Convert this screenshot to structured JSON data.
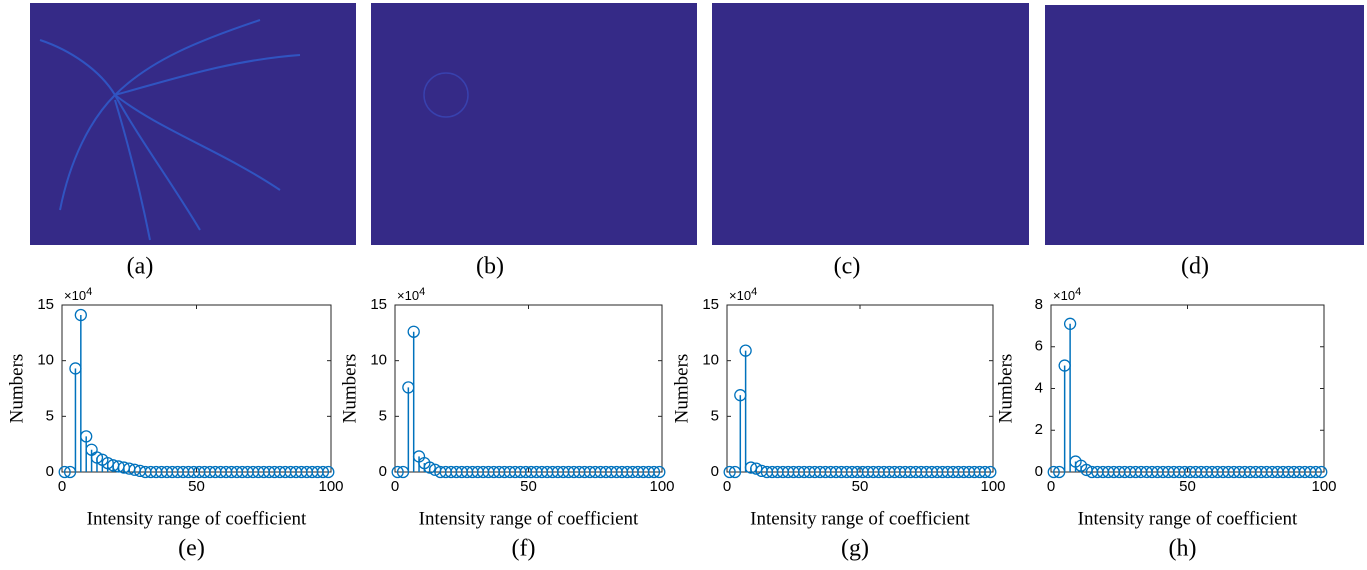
{
  "images": [
    {
      "label": "(a)"
    },
    {
      "label": "(b)"
    },
    {
      "label": "(c)"
    },
    {
      "label": "(d)"
    }
  ],
  "chart_data": [
    {
      "type": "stem",
      "label": "(e)",
      "xlabel": "Intensity range of coefficient",
      "ylabel": "Numbers",
      "multiplier": {
        "base": "×10",
        "exponent": "4"
      },
      "color": "#0072bd",
      "xlim": [
        0,
        100
      ],
      "xticks": [
        0,
        50,
        100
      ],
      "ylim": [
        0,
        15
      ],
      "yticks": [
        0,
        5,
        10,
        15
      ],
      "x": [
        1,
        3,
        5,
        7,
        9,
        11,
        13,
        15,
        17,
        19,
        21,
        23,
        25,
        27,
        29,
        31,
        33,
        35,
        37,
        39,
        41,
        43,
        45,
        47,
        49,
        51,
        53,
        55,
        57,
        59,
        61,
        63,
        65,
        67,
        69,
        71,
        73,
        75,
        77,
        79,
        81,
        83,
        85,
        87,
        89,
        91,
        93,
        95,
        97,
        99
      ],
      "values": [
        0,
        0,
        9.3,
        14.1,
        3.2,
        2.0,
        1.3,
        1.1,
        0.8,
        0.6,
        0.5,
        0.4,
        0.3,
        0.2,
        0.1,
        0,
        0,
        0,
        0,
        0,
        0,
        0,
        0,
        0,
        0,
        0,
        0,
        0,
        0,
        0,
        0,
        0,
        0,
        0,
        0,
        0,
        0,
        0,
        0,
        0,
        0,
        0,
        0,
        0,
        0,
        0,
        0,
        0,
        0,
        0
      ]
    },
    {
      "type": "stem",
      "label": "(f)",
      "xlabel": "Intensity range of coefficient",
      "ylabel": "Numbers",
      "multiplier": {
        "base": "×10",
        "exponent": "4"
      },
      "color": "#0072bd",
      "xlim": [
        0,
        100
      ],
      "xticks": [
        0,
        50,
        100
      ],
      "ylim": [
        0,
        15
      ],
      "yticks": [
        0,
        5,
        10,
        15
      ],
      "x": [
        1,
        3,
        5,
        7,
        9,
        11,
        13,
        15,
        17,
        19,
        21,
        23,
        25,
        27,
        29,
        31,
        33,
        35,
        37,
        39,
        41,
        43,
        45,
        47,
        49,
        51,
        53,
        55,
        57,
        59,
        61,
        63,
        65,
        67,
        69,
        71,
        73,
        75,
        77,
        79,
        81,
        83,
        85,
        87,
        89,
        91,
        93,
        95,
        97,
        99
      ],
      "values": [
        0,
        0,
        7.6,
        12.6,
        1.4,
        0.8,
        0.4,
        0.2,
        0,
        0,
        0,
        0,
        0,
        0,
        0,
        0,
        0,
        0,
        0,
        0,
        0,
        0,
        0,
        0,
        0,
        0,
        0,
        0,
        0,
        0,
        0,
        0,
        0,
        0,
        0,
        0,
        0,
        0,
        0,
        0,
        0,
        0,
        0,
        0,
        0,
        0,
        0,
        0,
        0,
        0
      ]
    },
    {
      "type": "stem",
      "label": "(g)",
      "xlabel": "Intensity range of coefficient",
      "ylabel": "Numbers",
      "multiplier": {
        "base": "×10",
        "exponent": "4"
      },
      "color": "#0072bd",
      "xlim": [
        0,
        100
      ],
      "xticks": [
        0,
        50,
        100
      ],
      "ylim": [
        0,
        15
      ],
      "yticks": [
        0,
        5,
        10,
        15
      ],
      "x": [
        1,
        3,
        5,
        7,
        9,
        11,
        13,
        15,
        17,
        19,
        21,
        23,
        25,
        27,
        29,
        31,
        33,
        35,
        37,
        39,
        41,
        43,
        45,
        47,
        49,
        51,
        53,
        55,
        57,
        59,
        61,
        63,
        65,
        67,
        69,
        71,
        73,
        75,
        77,
        79,
        81,
        83,
        85,
        87,
        89,
        91,
        93,
        95,
        97,
        99
      ],
      "values": [
        0,
        0,
        6.9,
        10.9,
        0.4,
        0.3,
        0.1,
        0,
        0,
        0,
        0,
        0,
        0,
        0,
        0,
        0,
        0,
        0,
        0,
        0,
        0,
        0,
        0,
        0,
        0,
        0,
        0,
        0,
        0,
        0,
        0,
        0,
        0,
        0,
        0,
        0,
        0,
        0,
        0,
        0,
        0,
        0,
        0,
        0,
        0,
        0,
        0,
        0,
        0,
        0
      ]
    },
    {
      "type": "stem",
      "label": "(h)",
      "xlabel": "Intensity range of coefficient",
      "ylabel": "Numbers",
      "multiplier": {
        "base": "×10",
        "exponent": "4"
      },
      "color": "#0072bd",
      "xlim": [
        0,
        100
      ],
      "xticks": [
        0,
        50,
        100
      ],
      "ylim": [
        0,
        8
      ],
      "yticks": [
        0,
        2,
        4,
        6,
        8
      ],
      "x": [
        1,
        3,
        5,
        7,
        9,
        11,
        13,
        15,
        17,
        19,
        21,
        23,
        25,
        27,
        29,
        31,
        33,
        35,
        37,
        39,
        41,
        43,
        45,
        47,
        49,
        51,
        53,
        55,
        57,
        59,
        61,
        63,
        65,
        67,
        69,
        71,
        73,
        75,
        77,
        79,
        81,
        83,
        85,
        87,
        89,
        91,
        93,
        95,
        97,
        99
      ],
      "values": [
        0,
        0,
        5.1,
        7.1,
        0.5,
        0.3,
        0.1,
        0,
        0,
        0,
        0,
        0,
        0,
        0,
        0,
        0,
        0,
        0,
        0,
        0,
        0,
        0,
        0,
        0,
        0,
        0,
        0,
        0,
        0,
        0,
        0,
        0,
        0,
        0,
        0,
        0,
        0,
        0,
        0,
        0,
        0,
        0,
        0,
        0,
        0,
        0,
        0,
        0,
        0,
        0
      ]
    }
  ]
}
